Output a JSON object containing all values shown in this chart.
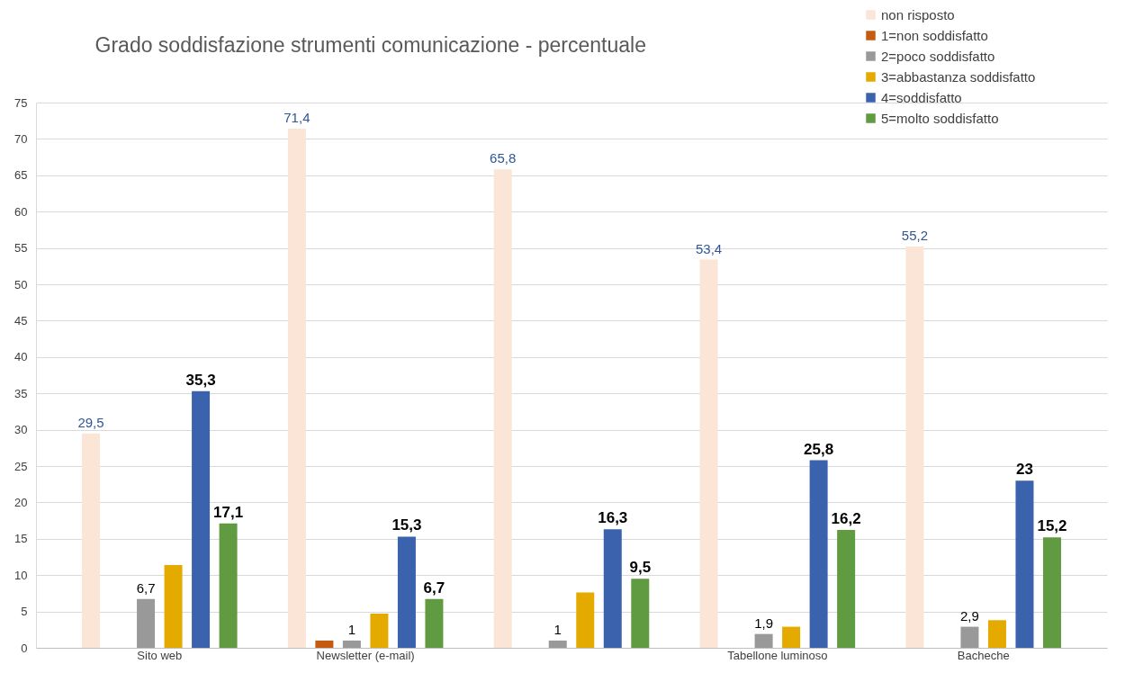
{
  "chart_data": {
    "type": "bar",
    "title": "Grado soddisfazione strumenti comunicazione - percentuale",
    "categories": [
      "Sito web",
      "Newsletter (e-mail)",
      null,
      "Tabellone luminoso",
      "Bacheche"
    ],
    "series": [
      {
        "name": "non risposto",
        "color": "#fbe5d6",
        "values": [
          29.5,
          71.4,
          65.8,
          53.4,
          55.2
        ],
        "value_labels": [
          "29,5",
          "71,4",
          "65,8",
          "53,4",
          "55,2"
        ]
      },
      {
        "name": "1=non soddisfatto",
        "color": "#c55a11",
        "values": [
          null,
          1,
          null,
          null,
          null
        ],
        "value_labels": [
          null,
          null,
          null,
          null,
          null
        ]
      },
      {
        "name": "2=poco soddisfatto",
        "color": "#999999",
        "values": [
          6.7,
          1,
          1,
          1.9,
          2.9
        ],
        "value_labels": [
          "6,7",
          "1",
          "1",
          "1,9",
          "2,9"
        ]
      },
      {
        "name": "3=abbastanza soddisfatto",
        "color": "#e5aa00",
        "values": [
          11.4,
          4.7,
          7.6,
          2.9,
          3.8
        ],
        "value_labels": [
          null,
          null,
          null,
          null,
          null
        ]
      },
      {
        "name": "4=soddisfatto",
        "color": "#3a62ad",
        "values": [
          35.3,
          15.3,
          16.3,
          25.8,
          23
        ],
        "value_labels": [
          "35,3",
          "15,3",
          "16,3",
          "25,8",
          "23"
        ]
      },
      {
        "name": "5=molto soddisfatto",
        "color": "#609b41",
        "values": [
          17.1,
          6.7,
          9.5,
          16.2,
          15.2
        ],
        "value_labels": [
          "17,1",
          "6,7",
          "9,5",
          "16,2",
          "15,2"
        ]
      }
    ],
    "ylim": [
      0,
      75
    ],
    "yticks": [
      0,
      5,
      10,
      15,
      20,
      25,
      30,
      35,
      40,
      45,
      50,
      55,
      60,
      65,
      70,
      75
    ],
    "grid": "y",
    "legend": "top right"
  }
}
